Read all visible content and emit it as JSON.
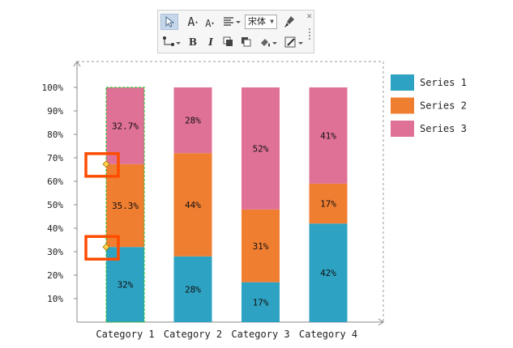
{
  "chart_data": {
    "type": "bar",
    "stacked": true,
    "normalized_percent": true,
    "categories": [
      "Category 1",
      "Category 2",
      "Category 3",
      "Category 4"
    ],
    "series": [
      {
        "name": "Series 1",
        "values": [
          32,
          28,
          17,
          42
        ],
        "labels": [
          "32%",
          "28%",
          "17%",
          "42%"
        ],
        "color": "#2ea2c2"
      },
      {
        "name": "Series 2",
        "values": [
          35.3,
          44,
          31,
          17
        ],
        "labels": [
          "35.3%",
          "44%",
          "31%",
          "17%"
        ],
        "color": "#f07e31"
      },
      {
        "name": "Series 3",
        "values": [
          32.7,
          28,
          52,
          41
        ],
        "labels": [
          "32.7%",
          "28%",
          "52%",
          "41%"
        ],
        "color": "#df7196"
      }
    ],
    "y_ticks": [
      "10%",
      "20%",
      "30%",
      "40%",
      "50%",
      "60%",
      "70%",
      "80%",
      "90%",
      "100%"
    ],
    "ylim": [
      0,
      100
    ],
    "grid": false,
    "legend_position": "right",
    "selected_category": "Category 1"
  },
  "toolbar": {
    "font_value": "宋体",
    "bold_label": "B",
    "italic_label": "I",
    "grow_font_label": "A",
    "shrink_font_label": "A"
  },
  "colors": {
    "highlight_box": "#ff4d00",
    "handle": "#ffd34d",
    "selection_outline": "#36c236"
  }
}
